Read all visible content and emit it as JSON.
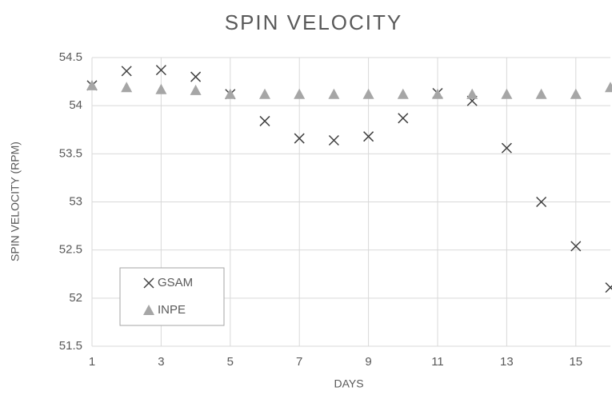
{
  "chart_data": {
    "type": "scatter",
    "title": "SPIN VELOCITY",
    "x_label": "DAYS",
    "y_label": "SPIN VELOCITY (RPM)",
    "x": [
      1,
      2,
      3,
      4,
      5,
      6,
      7,
      8,
      9,
      10,
      11,
      12,
      13,
      14,
      15,
      16
    ],
    "series": [
      {
        "name": "GSAM",
        "color": "#404040",
        "marker": "x",
        "values": [
          54.21,
          54.36,
          54.37,
          54.3,
          54.12,
          53.84,
          53.66,
          53.64,
          53.68,
          53.87,
          54.13,
          54.05,
          53.56,
          53.0,
          52.54,
          52.11
        ]
      },
      {
        "name": "INPE",
        "color": "#a6a6a6",
        "marker": "triangle",
        "values": [
          54.21,
          54.19,
          54.17,
          54.16,
          54.12,
          54.12,
          54.12,
          54.12,
          54.12,
          54.12,
          54.12,
          54.12,
          54.12,
          54.12,
          54.12,
          54.19
        ]
      }
    ],
    "xlim": [
      1,
      16
    ],
    "xticks": [
      1,
      3,
      5,
      7,
      9,
      11,
      13,
      15
    ],
    "ylim": [
      51.5,
      54.5
    ],
    "yticks": [
      51.5,
      52,
      52.5,
      53,
      53.5,
      54,
      54.5
    ],
    "grid": true
  }
}
